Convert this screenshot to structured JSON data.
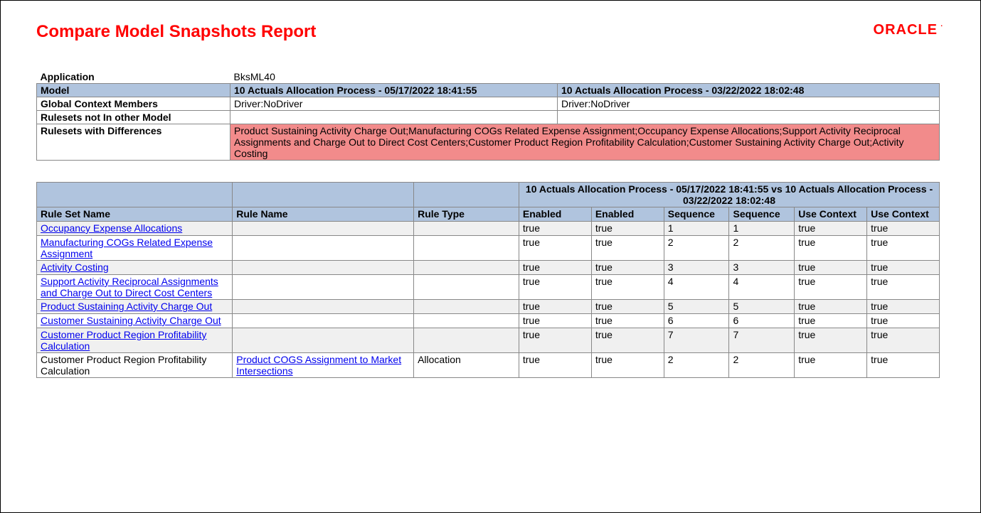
{
  "title": "Compare Model Snapshots Report",
  "logo_text": "ORACLE",
  "colors": {
    "title": "#ff0000",
    "logo": "#ff0000",
    "header_bg": "#b0c4de",
    "diff_bg": "#f28b8b",
    "alt_row_bg": "#f0f0f0",
    "link": "#0000ee",
    "border": "#888888"
  },
  "context": {
    "application_label": "Application",
    "application_value": "BksML40",
    "model_label": "Model",
    "model_a": "10 Actuals Allocation Process - 05/17/2022 18:41:55",
    "model_b": "10 Actuals Allocation Process - 03/22/2022 18:02:48",
    "global_context_label": "Global Context Members",
    "global_context_a": "Driver:NoDriver",
    "global_context_b": "Driver:NoDriver",
    "rulesets_not_label": "Rulesets not In other Model",
    "rulesets_not_a": "",
    "rulesets_not_b": "",
    "rulesets_diff_label": "Rulesets with Differences",
    "rulesets_diff_value": "Product Sustaining Activity Charge Out;Manufacturing COGs Related Expense Assignment;Occupancy Expense Allocations;Support Activity Reciprocal Assignments and Charge Out to Direct Cost Centers;Customer Product Region Profitability Calculation;Customer Sustaining Activity Charge Out;Activity Costing"
  },
  "compare_header": "10 Actuals Allocation Process - 05/17/2022 18:41:55 vs 10 Actuals Allocation Process - 03/22/2022 18:02:48",
  "columns": {
    "rule_set_name": "Rule Set Name",
    "rule_name": "Rule Name",
    "rule_type": "Rule Type",
    "enabled1": "Enabled",
    "enabled2": "Enabled",
    "sequence1": "Sequence",
    "sequence2": "Sequence",
    "use_context1": "Use Context",
    "use_context2": "Use Context"
  },
  "rows": [
    {
      "rule_set": "Occupancy Expense Allocations",
      "link_set": true,
      "rule_name": "",
      "link_name": false,
      "rule_type": "",
      "enabled1": "true",
      "enabled2": "true",
      "seq1": "1",
      "seq2": "1",
      "uc1": "true",
      "uc2": "true"
    },
    {
      "rule_set": "Manufacturing COGs Related Expense Assignment",
      "link_set": true,
      "rule_name": "",
      "link_name": false,
      "rule_type": "",
      "enabled1": "true",
      "enabled2": "true",
      "seq1": "2",
      "seq2": "2",
      "uc1": "true",
      "uc2": "true"
    },
    {
      "rule_set": "Activity Costing",
      "link_set": true,
      "rule_name": "",
      "link_name": false,
      "rule_type": "",
      "enabled1": "true",
      "enabled2": "true",
      "seq1": "3",
      "seq2": "3",
      "uc1": "true",
      "uc2": "true"
    },
    {
      "rule_set": "Support Activity Reciprocal Assignments and Charge Out to Direct Cost Centers",
      "link_set": true,
      "rule_name": "",
      "link_name": false,
      "rule_type": "",
      "enabled1": "true",
      "enabled2": "true",
      "seq1": "4",
      "seq2": "4",
      "uc1": "true",
      "uc2": "true"
    },
    {
      "rule_set": "Product Sustaining Activity Charge Out",
      "link_set": true,
      "rule_name": "",
      "link_name": false,
      "rule_type": "",
      "enabled1": "true",
      "enabled2": "true",
      "seq1": "5",
      "seq2": "5",
      "uc1": "true",
      "uc2": "true"
    },
    {
      "rule_set": "Customer Sustaining Activity Charge Out",
      "link_set": true,
      "rule_name": "",
      "link_name": false,
      "rule_type": "",
      "enabled1": "true",
      "enabled2": "true",
      "seq1": "6",
      "seq2": "6",
      "uc1": "true",
      "uc2": "true"
    },
    {
      "rule_set": "Customer Product Region Profitability Calculation",
      "link_set": true,
      "rule_name": "",
      "link_name": false,
      "rule_type": "",
      "enabled1": "true",
      "enabled2": "true",
      "seq1": "7",
      "seq2": "7",
      "uc1": "true",
      "uc2": "true"
    },
    {
      "rule_set": "Customer Product Region Profitability Calculation",
      "link_set": false,
      "rule_name": "Product COGS Assignment to Market Intersections",
      "link_name": true,
      "rule_type": "Allocation",
      "enabled1": "true",
      "enabled2": "true",
      "seq1": "2",
      "seq2": "2",
      "uc1": "true",
      "uc2": "true"
    }
  ]
}
